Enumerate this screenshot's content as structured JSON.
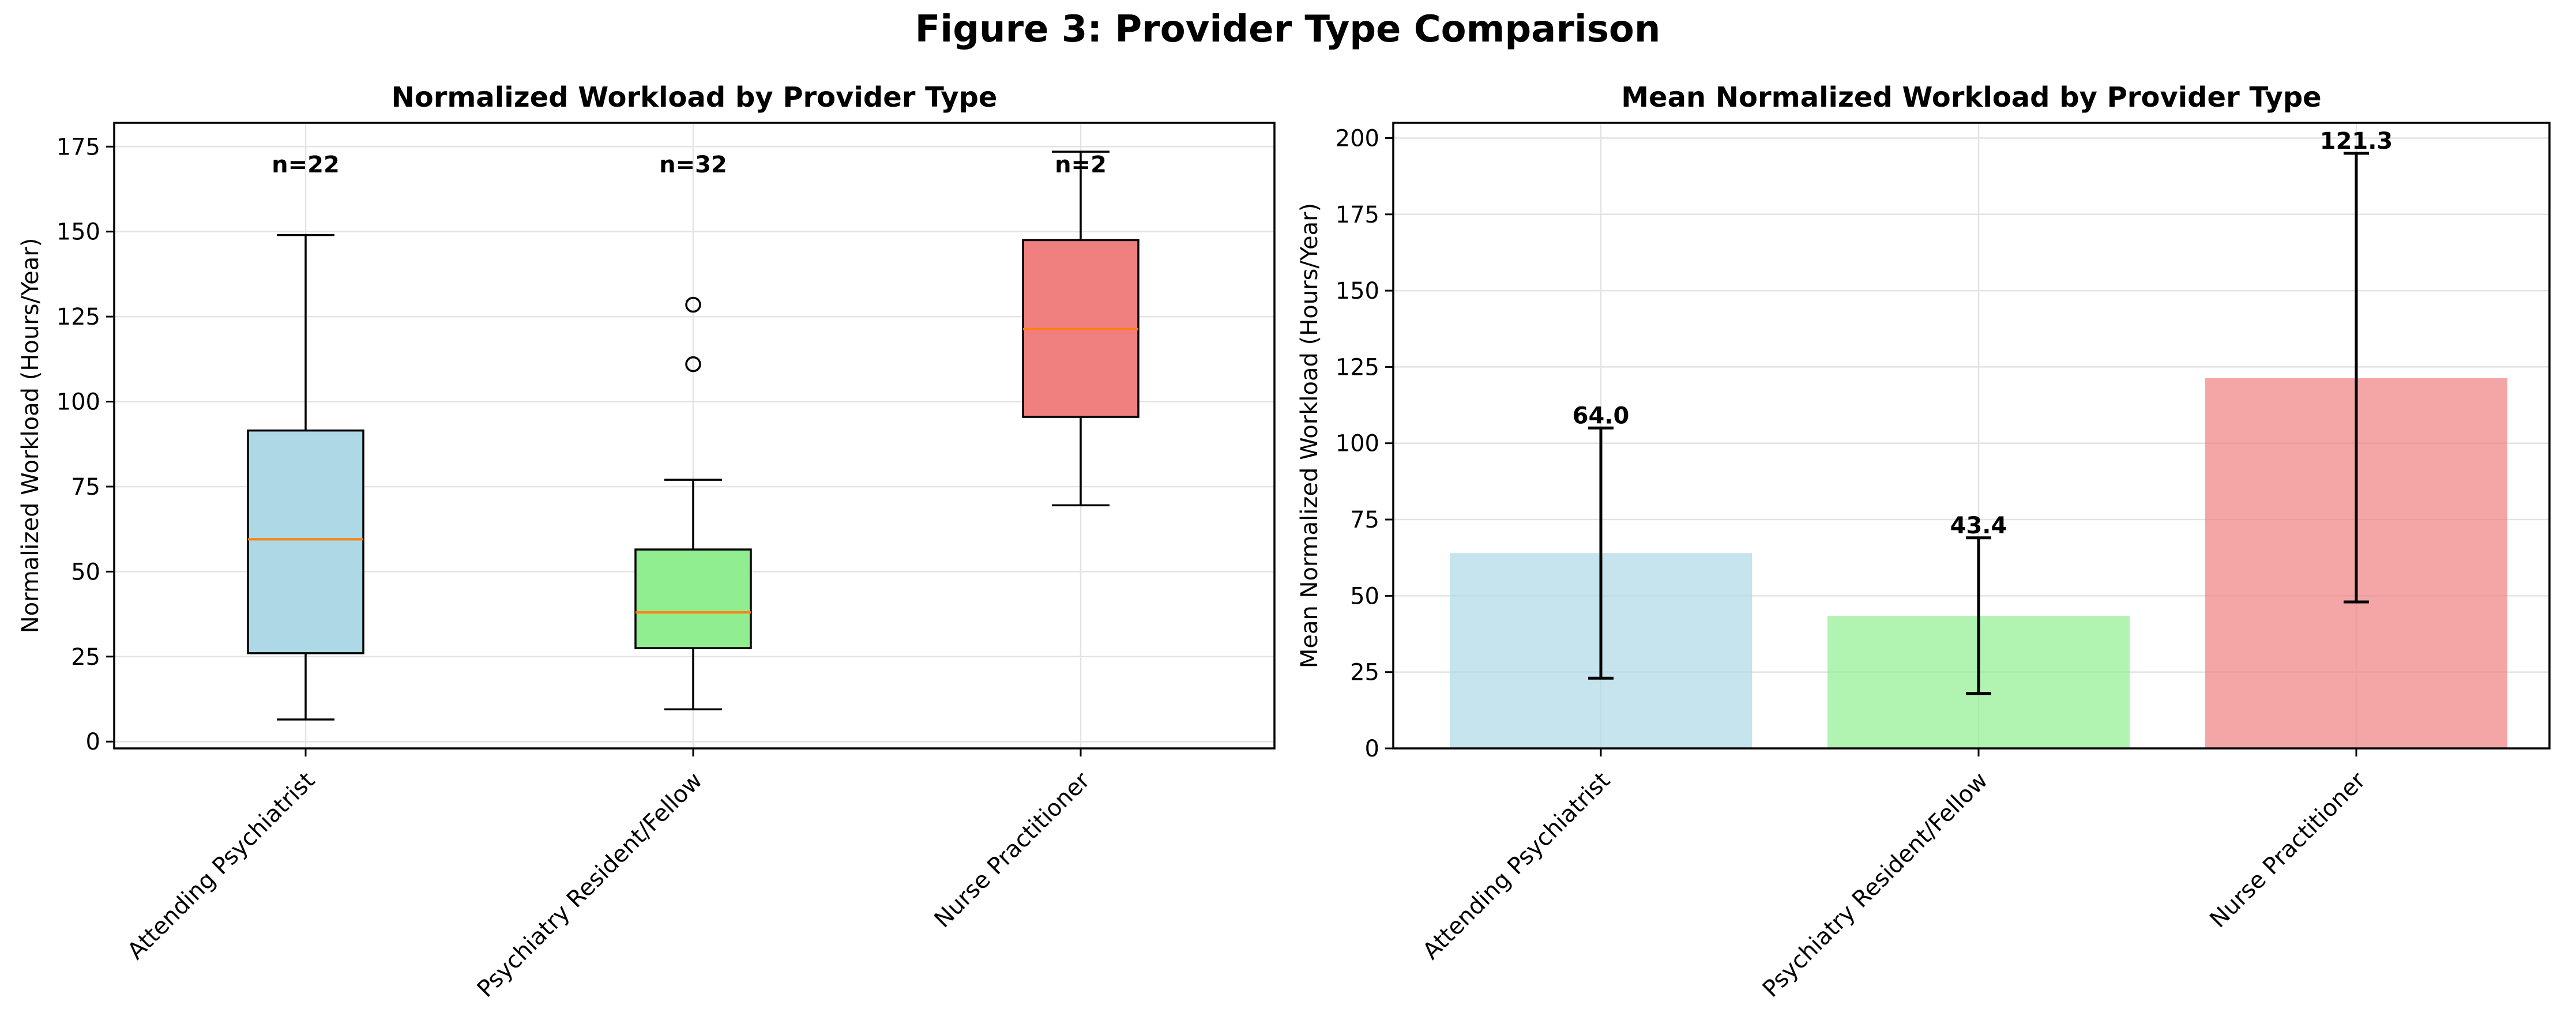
{
  "figure_title": "Figure 3: Provider Type Comparison",
  "chart_data": [
    {
      "type": "box",
      "title": "Normalized Workload by Provider Type",
      "xlabel": "",
      "ylabel": "Normalized Workload (Hours/Year)",
      "ylim": [
        -2,
        182
      ],
      "yticks": [
        0,
        25,
        50,
        75,
        100,
        125,
        150,
        175
      ],
      "grid": true,
      "categories": [
        "Attending Psychiatrist",
        "Psychiatry Resident/Fellow",
        "Nurse Practitioner"
      ],
      "colors": [
        "#add8e6",
        "#90ee90",
        "#f08080"
      ],
      "median_color": "#ff7f0e",
      "boxes": [
        {
          "whisker_low": 6.5,
          "q1": 26,
          "median": 59.5,
          "q3": 91.5,
          "whisker_high": 149,
          "outliers": []
        },
        {
          "whisker_low": 9.5,
          "q1": 27.5,
          "median": 38,
          "q3": 56.5,
          "whisker_high": 77,
          "outliers": [
            111,
            128.5
          ]
        },
        {
          "whisker_low": 69.5,
          "q1": 95.5,
          "median": 121.3,
          "q3": 147.5,
          "whisker_high": 173.5,
          "outliers": []
        }
      ],
      "annotations": [
        "n=22",
        "n=32",
        "n=2"
      ],
      "annotation_y": 170
    },
    {
      "type": "bar",
      "title": "Mean Normalized Workload by Provider Type",
      "xlabel": "",
      "ylabel": "Mean Normalized Workload (Hours/Year)",
      "ylim": [
        0,
        205
      ],
      "yticks": [
        0,
        25,
        50,
        75,
        100,
        125,
        150,
        175,
        200
      ],
      "grid": true,
      "categories": [
        "Attending Psychiatrist",
        "Psychiatry Resident/Fellow",
        "Nurse Practitioner"
      ],
      "colors": [
        "#add8e6",
        "#90ee90",
        "#f08080"
      ],
      "values": [
        64.0,
        43.4,
        121.3
      ],
      "error_low": [
        23,
        18,
        48
      ],
      "error_high": [
        105,
        69,
        195
      ],
      "value_labels": [
        "64.0",
        "43.4",
        "121.3"
      ]
    }
  ]
}
